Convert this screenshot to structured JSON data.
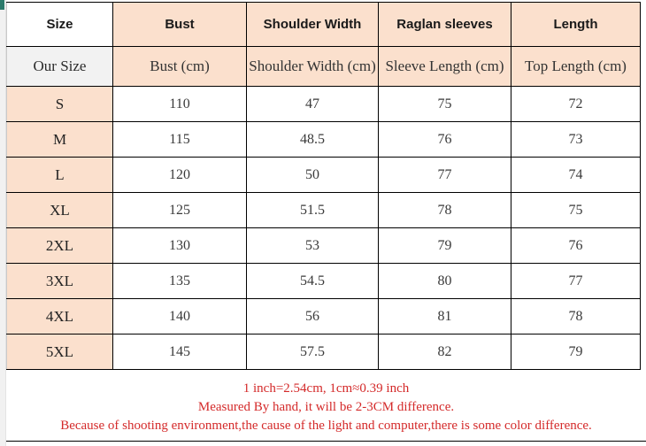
{
  "colors": {
    "cell_peach": "#fbe0cd",
    "cell_gray": "#f2f2f2",
    "cell_white": "#ffffff",
    "border_black": "#000000",
    "note_red": "#d42a2a",
    "margin_gray": "#f1f1f1",
    "corner_teal": "#2c7a6b"
  },
  "chart_data": {
    "type": "table",
    "title": "Garment size chart",
    "header": [
      "Size",
      "Bust",
      "Shoulder Width",
      "Raglan sleeves",
      "Length"
    ],
    "subheader": [
      "Our Size",
      "Bust (cm)",
      "Shoulder Width (cm)",
      "Sleeve Length (cm)",
      "Top Length (cm)"
    ],
    "rows": [
      {
        "size": "S",
        "values": [
          "110",
          "47",
          "75",
          "72"
        ]
      },
      {
        "size": "M",
        "values": [
          "115",
          "48.5",
          "76",
          "73"
        ]
      },
      {
        "size": "L",
        "values": [
          "120",
          "50",
          "77",
          "74"
        ]
      },
      {
        "size": "XL",
        "values": [
          "125",
          "51.5",
          "78",
          "75"
        ]
      },
      {
        "size": "2XL",
        "values": [
          "130",
          "53",
          "79",
          "76"
        ]
      },
      {
        "size": "3XL",
        "values": [
          "135",
          "54.5",
          "80",
          "77"
        ]
      },
      {
        "size": "4XL",
        "values": [
          "140",
          "56",
          "81",
          "78"
        ]
      },
      {
        "size": "5XL",
        "values": [
          "145",
          "57.5",
          "82",
          "79"
        ]
      }
    ]
  },
  "footer": {
    "lines": [
      "1 inch=2.54cm, 1cm≈0.39 inch",
      "Measured By hand, it will be 2-3CM difference.",
      "Because of shooting environment,the cause of the light and computer,there is some color difference."
    ]
  }
}
